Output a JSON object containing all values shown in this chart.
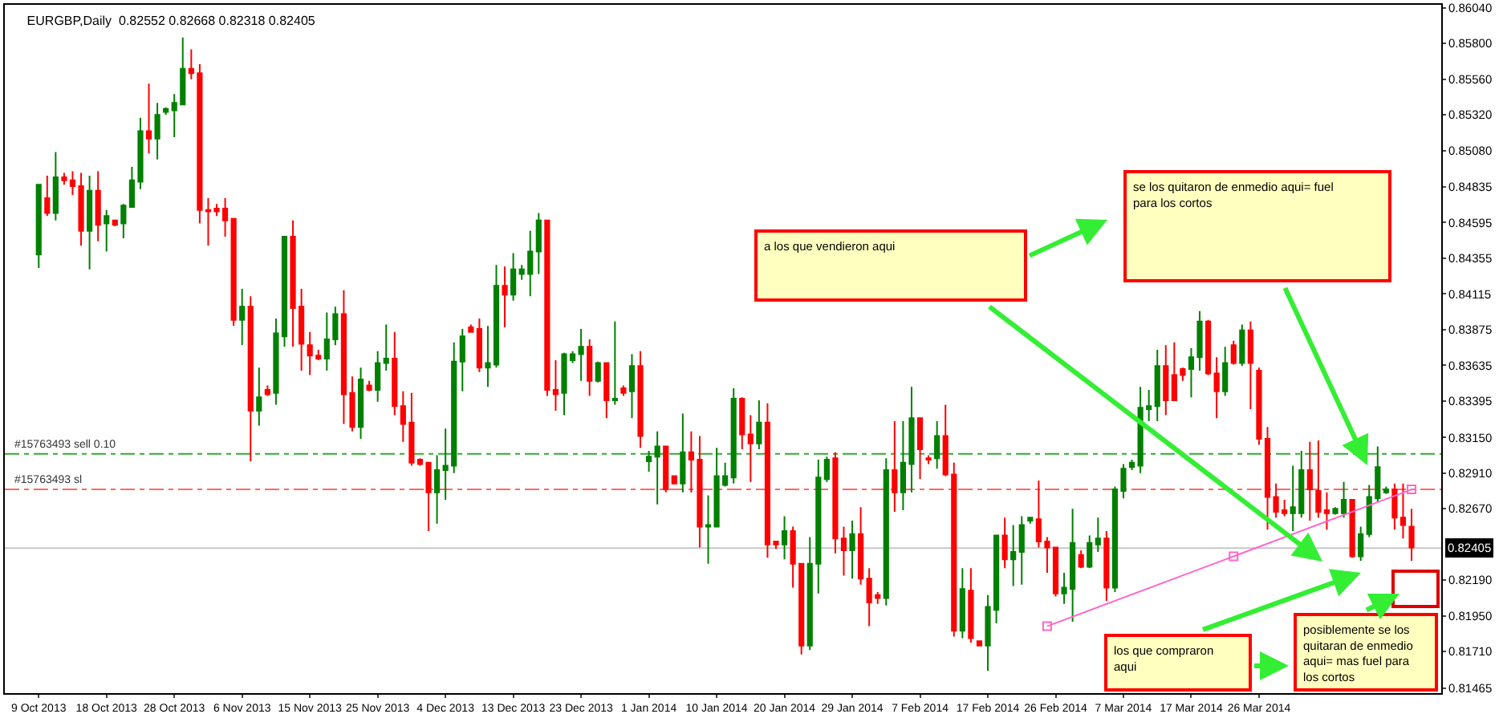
{
  "chart_data": {
    "type": "candlestick",
    "title": "EURGBP,Daily  0.82552 0.82668 0.82318 0.82405",
    "categories": [
      "9 Oct 2013",
      null,
      null,
      null,
      null,
      null,
      null,
      null,
      "18 Oct 2013",
      null,
      null,
      null,
      null,
      null,
      null,
      null,
      "28 Oct 2013",
      null,
      null,
      null,
      null,
      null,
      null,
      null,
      "6 Nov 2013",
      null,
      null,
      null,
      null,
      null,
      null,
      null,
      "15 Nov 2013",
      null,
      null,
      null,
      null,
      null,
      null,
      null,
      "25 Nov 2013",
      null,
      null,
      null,
      null,
      null,
      null,
      null,
      "4 Dec 2013",
      null,
      null,
      null,
      null,
      null,
      null,
      null,
      "13 Dec 2013",
      null,
      null,
      null,
      null,
      null,
      null,
      null,
      "23 Dec 2013",
      null,
      null,
      null,
      null,
      null,
      null,
      null,
      "1 Jan 2014",
      null,
      null,
      null,
      null,
      null,
      null,
      null,
      "10 Jan 2014",
      null,
      null,
      null,
      null,
      null,
      null,
      null,
      "20 Jan 2014",
      null,
      null,
      null,
      null,
      null,
      null,
      null,
      "29 Jan 2014",
      null,
      null,
      null,
      null,
      null,
      null,
      null,
      "7 Feb 2014",
      null,
      null,
      null,
      null,
      null,
      null,
      null,
      "17 Feb 2014",
      null,
      null,
      null,
      null,
      null,
      null,
      null,
      "26 Feb 2014",
      null,
      null,
      null,
      null,
      null,
      null,
      null,
      "7 Mar 2014",
      null,
      null,
      null,
      null,
      null,
      null,
      null,
      "17 Mar 2014",
      null,
      null,
      null,
      null,
      null,
      null,
      null,
      "26 Mar 2014",
      null,
      null,
      null,
      null,
      null,
      null,
      null,
      null,
      null,
      null,
      null,
      null,
      null,
      null,
      null,
      null,
      null,
      null
    ],
    "ohlc": [
      [
        0.8438,
        0.8485,
        0.8429,
        0.8485
      ],
      [
        0.8476,
        0.8491,
        0.8464,
        0.8466
      ],
      [
        0.8466,
        0.8507,
        0.8461,
        0.849
      ],
      [
        0.849,
        0.8493,
        0.8485,
        0.8488
      ],
      [
        0.8488,
        0.8494,
        0.8478,
        0.8484
      ],
      [
        0.8484,
        0.8493,
        0.8444,
        0.8454
      ],
      [
        0.8454,
        0.8491,
        0.8428,
        0.8481
      ],
      [
        0.8481,
        0.8494,
        0.8447,
        0.8458
      ],
      [
        0.8459,
        0.8468,
        0.844,
        0.8464
      ],
      [
        0.8461,
        0.8461,
        0.8457,
        0.8458
      ],
      [
        0.8459,
        0.8472,
        0.8449,
        0.8471
      ],
      [
        0.847,
        0.8497,
        0.847,
        0.8488
      ],
      [
        0.8487,
        0.853,
        0.8482,
        0.8521
      ],
      [
        0.8521,
        0.8553,
        0.8506,
        0.8516
      ],
      [
        0.8516,
        0.854,
        0.8502,
        0.8532
      ],
      [
        0.8534,
        0.8537,
        0.8532,
        0.8536
      ],
      [
        0.8535,
        0.8546,
        0.8517,
        0.854
      ],
      [
        0.8539,
        0.8584,
        0.8539,
        0.8563
      ],
      [
        0.8563,
        0.8576,
        0.8556,
        0.856
      ],
      [
        0.856,
        0.8566,
        0.8459,
        0.8468
      ],
      [
        0.8468,
        0.8476,
        0.8444,
        0.8467
      ],
      [
        0.8469,
        0.8472,
        0.8464,
        0.8467
      ],
      [
        0.8469,
        0.8476,
        0.845,
        0.8461
      ],
      [
        0.8462,
        0.8462,
        0.839,
        0.8394
      ],
      [
        0.8394,
        0.8415,
        0.8377,
        0.8403
      ],
      [
        0.8403,
        0.841,
        0.8299,
        0.8333
      ],
      [
        0.8333,
        0.8362,
        0.8323,
        0.8342
      ],
      [
        0.8347,
        0.835,
        0.8343,
        0.8344
      ],
      [
        0.8345,
        0.8395,
        0.8337,
        0.8385
      ],
      [
        0.8383,
        0.845,
        0.8376,
        0.845
      ],
      [
        0.845,
        0.8461,
        0.8376,
        0.8402
      ],
      [
        0.8403,
        0.8415,
        0.836,
        0.8378
      ],
      [
        0.8377,
        0.8386,
        0.8357,
        0.837
      ],
      [
        0.837,
        0.8374,
        0.8367,
        0.8368
      ],
      [
        0.8368,
        0.8399,
        0.836,
        0.8381
      ],
      [
        0.8381,
        0.8403,
        0.8377,
        0.8398
      ],
      [
        0.8398,
        0.8414,
        0.8324,
        0.8344
      ],
      [
        0.8345,
        0.8356,
        0.8319,
        0.8322
      ],
      [
        0.8322,
        0.8362,
        0.8314,
        0.8354
      ],
      [
        0.835,
        0.8353,
        0.8346,
        0.8347
      ],
      [
        0.8347,
        0.8373,
        0.8339,
        0.8365
      ],
      [
        0.8365,
        0.8391,
        0.836,
        0.8368
      ],
      [
        0.8368,
        0.8386,
        0.833,
        0.8336
      ],
      [
        0.8336,
        0.8346,
        0.8312,
        0.8324
      ],
      [
        0.8325,
        0.8345,
        0.8296,
        0.8298
      ],
      [
        0.83,
        0.8301,
        0.8296,
        0.8297
      ],
      [
        0.8298,
        0.8298,
        0.8252,
        0.8278
      ],
      [
        0.8278,
        0.8303,
        0.8257,
        0.8293
      ],
      [
        0.8293,
        0.8321,
        0.8273,
        0.8296
      ],
      [
        0.8296,
        0.8379,
        0.8291,
        0.8366
      ],
      [
        0.8366,
        0.8388,
        0.8346,
        0.8383
      ],
      [
        0.8389,
        0.8391,
        0.8386,
        0.8386
      ],
      [
        0.8388,
        0.8395,
        0.8359,
        0.8362
      ],
      [
        0.8362,
        0.839,
        0.8349,
        0.8365
      ],
      [
        0.8364,
        0.8431,
        0.8362,
        0.8417
      ],
      [
        0.8417,
        0.843,
        0.8389,
        0.8411
      ],
      [
        0.8411,
        0.8439,
        0.8407,
        0.8428
      ],
      [
        0.8425,
        0.8431,
        0.8421,
        0.8428
      ],
      [
        0.8425,
        0.8454,
        0.841,
        0.844
      ],
      [
        0.844,
        0.8466,
        0.8425,
        0.8461
      ],
      [
        0.8461,
        0.8461,
        0.8343,
        0.8347
      ],
      [
        0.8347,
        0.8367,
        0.8333,
        0.8344
      ],
      [
        0.8345,
        0.8372,
        0.833,
        0.8371
      ],
      [
        0.8367,
        0.8373,
        0.8365,
        0.8371
      ],
      [
        0.8371,
        0.8388,
        0.8353,
        0.8376
      ],
      [
        0.8376,
        0.8381,
        0.8343,
        0.8353
      ],
      [
        0.8353,
        0.8366,
        0.8352,
        0.8365
      ],
      [
        0.8365,
        0.8365,
        0.8328,
        0.834
      ],
      [
        0.834,
        0.8393,
        0.8337,
        0.8341
      ],
      [
        0.8348,
        0.835,
        0.8343,
        0.8345
      ],
      [
        0.8346,
        0.8371,
        0.8328,
        0.8363
      ],
      [
        0.8363,
        0.8373,
        0.8308,
        0.8316
      ],
      [
        0.8299,
        0.8306,
        0.8292,
        0.8302
      ],
      [
        0.8302,
        0.8319,
        0.827,
        0.8309
      ],
      [
        0.8309,
        0.8309,
        0.8278,
        0.828
      ],
      [
        0.8289,
        0.8289,
        0.8284,
        0.8284
      ],
      [
        0.8284,
        0.8331,
        0.8278,
        0.8305
      ],
      [
        0.8305,
        0.8319,
        0.8278,
        0.83
      ],
      [
        0.83,
        0.8316,
        0.8241,
        0.8255
      ],
      [
        0.8255,
        0.8276,
        0.823,
        0.8256
      ],
      [
        0.8255,
        0.8308,
        0.8255,
        0.8289
      ],
      [
        0.8283,
        0.8298,
        0.8282,
        0.8289
      ],
      [
        0.8288,
        0.8348,
        0.8284,
        0.8341
      ],
      [
        0.8341,
        0.8342,
        0.8307,
        0.8317
      ],
      [
        0.8317,
        0.833,
        0.8285,
        0.8311
      ],
      [
        0.8311,
        0.834,
        0.8307,
        0.8325
      ],
      [
        0.8325,
        0.8338,
        0.8234,
        0.8243
      ],
      [
        0.8245,
        0.8245,
        0.824,
        0.8243
      ],
      [
        0.8243,
        0.8262,
        0.8233,
        0.8252
      ],
      [
        0.8252,
        0.8255,
        0.8214,
        0.823
      ],
      [
        0.823,
        0.823,
        0.8169,
        0.8175
      ],
      [
        0.8175,
        0.8248,
        0.8172,
        0.823
      ],
      [
        0.823,
        0.83,
        0.821,
        0.8288
      ],
      [
        0.8287,
        0.8302,
        0.8285,
        0.83
      ],
      [
        0.8301,
        0.8305,
        0.8237,
        0.8247
      ],
      [
        0.8247,
        0.8255,
        0.8222,
        0.8239
      ],
      [
        0.8239,
        0.8259,
        0.822,
        0.825
      ],
      [
        0.825,
        0.8268,
        0.8216,
        0.822
      ],
      [
        0.822,
        0.8227,
        0.8188,
        0.8204
      ],
      [
        0.8209,
        0.8211,
        0.8203,
        0.8207
      ],
      [
        0.8207,
        0.8301,
        0.8202,
        0.8293
      ],
      [
        0.8293,
        0.8326,
        0.8265,
        0.8278
      ],
      [
        0.8278,
        0.8326,
        0.8266,
        0.8298
      ],
      [
        0.8297,
        0.8349,
        0.8278,
        0.8328
      ],
      [
        0.8328,
        0.8328,
        0.8287,
        0.8307
      ],
      [
        0.8301,
        0.8303,
        0.8297,
        0.83
      ],
      [
        0.8301,
        0.8326,
        0.8294,
        0.8316
      ],
      [
        0.8316,
        0.8337,
        0.8289,
        0.829
      ],
      [
        0.829,
        0.8298,
        0.8181,
        0.8185
      ],
      [
        0.8185,
        0.8227,
        0.818,
        0.8213
      ],
      [
        0.8212,
        0.8227,
        0.8177,
        0.818
      ],
      [
        0.8178,
        0.8178,
        0.8175,
        0.8175
      ],
      [
        0.8175,
        0.8209,
        0.8158,
        0.8201
      ],
      [
        0.8199,
        0.8249,
        0.819,
        0.8249
      ],
      [
        0.8249,
        0.8261,
        0.8227,
        0.8233
      ],
      [
        0.8233,
        0.8256,
        0.8215,
        0.8238
      ],
      [
        0.8238,
        0.8262,
        0.8216,
        0.8256
      ],
      [
        0.8259,
        0.8261,
        0.8257,
        0.8261
      ],
      [
        0.826,
        0.8286,
        0.8241,
        0.8245
      ],
      [
        0.8245,
        0.8248,
        0.8224,
        0.8241
      ],
      [
        0.8241,
        0.8241,
        0.8208,
        0.821
      ],
      [
        0.821,
        0.8224,
        0.8203,
        0.8214
      ],
      [
        0.8213,
        0.8267,
        0.8191,
        0.8244
      ],
      [
        0.8236,
        0.8239,
        0.8227,
        0.8228
      ],
      [
        0.8228,
        0.8249,
        0.8227,
        0.8244
      ],
      [
        0.8243,
        0.8261,
        0.8238,
        0.8247
      ],
      [
        0.8247,
        0.8252,
        0.8205,
        0.8214
      ],
      [
        0.8214,
        0.8282,
        0.8211,
        0.828
      ],
      [
        0.8279,
        0.8297,
        0.8274,
        0.8294
      ],
      [
        0.8295,
        0.83,
        0.8293,
        0.8298
      ],
      [
        0.8296,
        0.8349,
        0.8291,
        0.8335
      ],
      [
        0.8334,
        0.8347,
        0.8326,
        0.8336
      ],
      [
        0.8336,
        0.8374,
        0.8326,
        0.8363
      ],
      [
        0.8363,
        0.8377,
        0.833,
        0.834
      ],
      [
        0.8357,
        0.8379,
        0.834,
        0.834
      ],
      [
        0.8361,
        0.8362,
        0.8353,
        0.8357
      ],
      [
        0.8361,
        0.8375,
        0.8342,
        0.8369
      ],
      [
        0.8369,
        0.84,
        0.836,
        0.8393
      ],
      [
        0.8393,
        0.8394,
        0.8357,
        0.8358
      ],
      [
        0.8358,
        0.8369,
        0.8328,
        0.8346
      ],
      [
        0.8346,
        0.8376,
        0.8343,
        0.8365
      ],
      [
        0.8377,
        0.838,
        0.8364,
        0.8365
      ],
      [
        0.8365,
        0.8391,
        0.8363,
        0.8387
      ],
      [
        0.8387,
        0.8393,
        0.8334,
        0.8365
      ],
      [
        0.836,
        0.8362,
        0.831,
        0.8314
      ],
      [
        0.8314,
        0.8322,
        0.8253,
        0.8275
      ],
      [
        0.8275,
        0.8284,
        0.8261,
        0.8265
      ],
      [
        0.8266,
        0.8273,
        0.8262,
        0.8264
      ],
      [
        0.8264,
        0.8296,
        0.8252,
        0.8268
      ],
      [
        0.8264,
        0.8306,
        0.8261,
        0.8293
      ],
      [
        0.8293,
        0.8312,
        0.8259,
        0.828
      ],
      [
        0.8279,
        0.8313,
        0.8261,
        0.8265
      ],
      [
        0.8266,
        0.8278,
        0.8253,
        0.8264
      ],
      [
        0.8264,
        0.8268,
        0.8263,
        0.8267
      ],
      [
        0.8264,
        0.8285,
        0.8261,
        0.8273
      ],
      [
        0.8273,
        0.8273,
        0.8234,
        0.8235
      ],
      [
        0.8235,
        0.8255,
        0.8232,
        0.825
      ],
      [
        0.825,
        0.8283,
        0.8248,
        0.8275
      ],
      [
        0.8274,
        0.8309,
        0.8272,
        0.8295
      ],
      [
        0.8278,
        0.8282,
        0.8277,
        0.828
      ],
      [
        0.828,
        0.8284,
        0.8253,
        0.8261
      ],
      [
        0.8261,
        0.8284,
        0.8247,
        0.8256
      ],
      [
        0.8255,
        0.8267,
        0.8232,
        0.8241
      ]
    ],
    "colors": [
      "#008000",
      "#ff0000",
      "#008000",
      "#ff0000",
      "#ff0000",
      "#ff0000",
      "#008000",
      "#ff0000",
      "#008000",
      "#ff0000",
      "#008000",
      "#008000",
      "#008000",
      "#ff0000",
      "#008000",
      "#008000",
      "#008000",
      "#008000",
      "#ff0000",
      "#ff0000",
      "#ff0000",
      "#ff0000",
      "#ff0000",
      "#ff0000",
      "#008000",
      "#ff0000",
      "#008000",
      "#ff0000",
      "#008000",
      "#008000",
      "#ff0000",
      "#ff0000",
      "#ff0000",
      "#ff0000",
      "#008000",
      "#008000",
      "#ff0000",
      "#ff0000",
      "#008000",
      "#ff0000",
      "#008000",
      "#008000",
      "#ff0000",
      "#ff0000",
      "#ff0000",
      "#ff0000",
      "#ff0000",
      "#008000",
      "#008000",
      "#008000",
      "#008000",
      "#ff0000",
      "#ff0000",
      "#008000",
      "#008000",
      "#ff0000",
      "#008000",
      "#008000",
      "#008000",
      "#008000",
      "#ff0000",
      "#ff0000",
      "#008000",
      "#008000",
      "#008000",
      "#ff0000",
      "#008000",
      "#ff0000",
      "#008000",
      "#ff0000",
      "#008000",
      "#ff0000",
      "#008000",
      "#008000",
      "#ff0000",
      "#ff0000",
      "#008000",
      "#ff0000",
      "#ff0000",
      "#008000",
      "#008000",
      "#008000",
      "#008000",
      "#ff0000",
      "#ff0000",
      "#008000",
      "#ff0000",
      "#ff0000",
      "#008000",
      "#ff0000",
      "#ff0000",
      "#008000",
      "#008000",
      "#008000",
      "#ff0000",
      "#ff0000",
      "#008000",
      "#ff0000",
      "#ff0000",
      "#ff0000",
      "#008000",
      "#ff0000",
      "#008000",
      "#008000",
      "#ff0000",
      "#ff0000",
      "#008000",
      "#ff0000",
      "#ff0000",
      "#008000",
      "#ff0000",
      "#ff0000",
      "#008000",
      "#008000",
      "#ff0000",
      "#008000",
      "#008000",
      "#008000",
      "#ff0000",
      "#ff0000",
      "#ff0000",
      "#008000",
      "#008000",
      "#ff0000",
      "#008000",
      "#008000",
      "#ff0000",
      "#008000",
      "#008000",
      "#008000",
      "#008000",
      "#008000",
      "#008000",
      "#ff0000",
      "#ff0000",
      "#ff0000",
      "#008000",
      "#008000",
      "#ff0000",
      "#ff0000",
      "#008000",
      "#ff0000",
      "#008000",
      "#ff0000",
      "#ff0000",
      "#ff0000",
      "#ff0000",
      "#ff0000",
      "#008000",
      "#008000",
      "#ff0000",
      "#ff0000",
      "#ff0000",
      "#008000",
      "#008000",
      "#ff0000",
      "#008000",
      "#008000",
      "#008000",
      "#008000",
      "#ff0000",
      "#ff0000",
      "#ff0000"
    ],
    "series": [
      {
        "type": "line",
        "color": "#ff66cc",
        "marker": "square",
        "values": [
          null,
          null,
          null,
          null,
          null,
          null,
          null,
          null,
          null,
          null,
          null,
          null,
          null,
          null,
          null,
          null,
          null,
          null,
          null,
          null,
          null,
          null,
          null,
          null,
          null,
          null,
          null,
          null,
          null,
          null,
          null,
          null,
          null,
          null,
          null,
          null,
          null,
          null,
          null,
          null,
          null,
          null,
          null,
          null,
          null,
          null,
          null,
          null,
          null,
          null,
          null,
          null,
          null,
          null,
          null,
          null,
          null,
          null,
          null,
          null,
          null,
          null,
          null,
          null,
          null,
          null,
          null,
          null,
          null,
          null,
          null,
          null,
          null,
          null,
          null,
          null,
          null,
          null,
          null,
          null,
          null,
          null,
          null,
          null,
          null,
          null,
          null,
          null,
          null,
          null,
          null,
          null,
          null,
          null,
          null,
          null,
          null,
          null,
          null,
          null,
          null,
          null,
          null,
          null,
          null,
          null,
          null,
          null,
          null,
          null,
          null,
          null,
          null,
          null,
          null,
          null,
          null,
          null,
          null,
          0.8188,
          null,
          null,
          null,
          null,
          null,
          null,
          null,
          null,
          null,
          null,
          null,
          null,
          null,
          null,
          null,
          null,
          null,
          null,
          null,
          null,
          null,
          0.8235,
          null,
          null,
          null,
          null,
          null,
          null,
          null,
          null,
          null,
          null,
          null,
          null,
          null,
          null,
          null,
          null,
          null,
          null,
          null,
          null,
          0.828
        ]
      }
    ],
    "ylim": [
      0.8143,
      0.8606
    ],
    "yticks": [
      {
        "value": 0.8604,
        "label": "0.86040"
      },
      {
        "value": 0.858,
        "label": "0.85800"
      },
      {
        "value": 0.8556,
        "label": "0.85560"
      },
      {
        "value": 0.8532,
        "label": "0.85320"
      },
      {
        "value": 0.8508,
        "label": "0.85080"
      },
      0.84835,
      0.84595,
      0.84355,
      0.84115,
      0.83875,
      0.83635,
      0.83395,
      {
        "value": 0.8315,
        "label": "0.83150"
      },
      {
        "value": 0.8291,
        "label": "0.82910"
      },
      {
        "value": 0.8267,
        "label": "0.82670"
      },
      {
        "value": 0.8219,
        "label": "0.82190"
      },
      {
        "value": 0.8195,
        "label": "0.81950"
      },
      {
        "value": 0.8171,
        "label": "0.81710"
      },
      0.81465
    ],
    "ref_lines": [
      {
        "axis": "y",
        "value": 0.8304,
        "label": "#15763493 sell 0.10",
        "color": "#33aa33",
        "line_style": "dashdot"
      },
      {
        "axis": "y",
        "value": 0.828,
        "label": "#15763493 sl",
        "color": "#ff6666",
        "line_style": "dashdot"
      },
      {
        "axis": "y",
        "value": 0.82405,
        "label": "0.82405",
        "color": "#c8c8c8",
        "line_style": "solid"
      }
    ],
    "annotations": [
      "a los que vendieron aqui",
      "se los quitaron de enmedio aqui= fuel\npara los cortos",
      "los que compraron\naqui",
      "posiblemente se los\nquitaran de enmedio\naqui= mas fuel para\nlos cortos"
    ]
  }
}
